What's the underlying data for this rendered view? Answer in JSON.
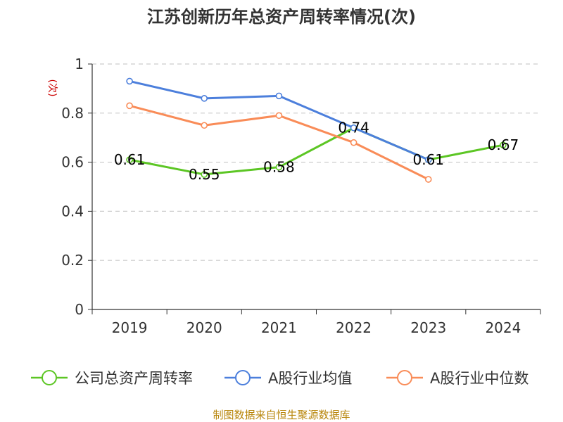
{
  "title": "江苏创新历年总资产周转率情况(次)",
  "source": "制图数据来自恒生聚源数据库",
  "chart_data": {
    "type": "line",
    "title": "江苏创新历年总资产周转率情况(次)",
    "ylabel": "(次)",
    "xlabel": "",
    "categories": [
      "2019",
      "2020",
      "2021",
      "2022",
      "2023",
      "2024"
    ],
    "ylim": [
      0,
      1
    ],
    "yticks": [
      "0",
      "0.2",
      "0.4",
      "0.6",
      "0.8",
      "1"
    ],
    "yticks_values": [
      0,
      0.2,
      0.4,
      0.6,
      0.8,
      1
    ],
    "grid": "horizontal-dashed",
    "legend": "bottom",
    "series": [
      {
        "name": "公司总资产周转率",
        "color": "#5cc624",
        "values": [
          0.61,
          0.55,
          0.58,
          0.74,
          0.61,
          0.67
        ],
        "labels": [
          "0.61",
          "0.55",
          "0.58",
          "0.74",
          "0.61",
          "0.67"
        ]
      },
      {
        "name": "A股行业均值",
        "color": "#4c7fdc",
        "values": [
          0.93,
          0.86,
          0.87,
          0.74,
          0.61,
          null
        ]
      },
      {
        "name": "A股行业中位数",
        "color": "#f98c58",
        "values": [
          0.83,
          0.75,
          0.79,
          0.68,
          0.53,
          null
        ]
      }
    ]
  }
}
